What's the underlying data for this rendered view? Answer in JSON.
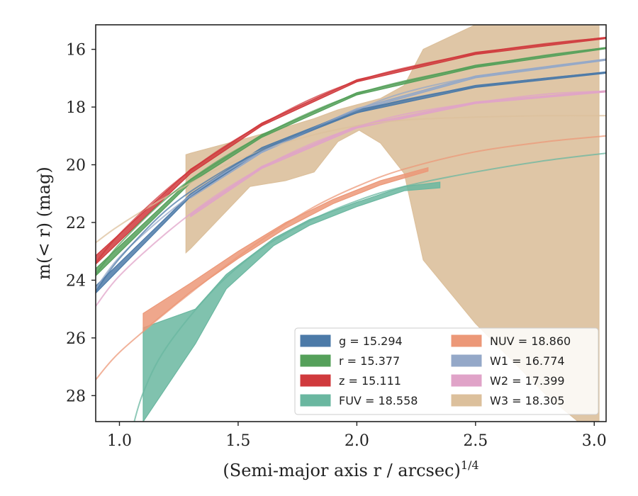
{
  "chart_data": {
    "type": "area",
    "xlabel": "(Semi-major axis r / arcsec)",
    "xlabel_sup": "1/4",
    "ylabel": "m(< r) (mag)",
    "xlim": [
      0.9,
      3.05
    ],
    "ylim": [
      28.9,
      15.15
    ],
    "y_inverted": true,
    "xticks": [
      1.0,
      1.5,
      2.0,
      2.5,
      3.0
    ],
    "xtick_labels": [
      "1.0",
      "1.5",
      "2.0",
      "2.5",
      "3.0"
    ],
    "yticks": [
      16,
      18,
      20,
      22,
      24,
      26,
      28
    ],
    "ytick_labels": [
      "16",
      "18",
      "20",
      "22",
      "24",
      "26",
      "28"
    ],
    "grid": false,
    "legend_position": "lower-right",
    "series": [
      {
        "key": "g",
        "label": "g = 15.294",
        "color": "#4c7aa8",
        "fit_x": [
          0.9,
          1.0,
          1.2,
          1.4,
          1.6,
          1.8,
          2.0,
          2.2,
          2.5,
          2.8,
          3.05
        ],
        "fit_y": [
          24.4,
          23.25,
          21.55,
          20.4,
          19.5,
          18.8,
          18.2,
          17.75,
          17.3,
          17.0,
          16.8
        ],
        "band_x": [
          0.9,
          1.3,
          1.6,
          2.0,
          2.5,
          3.05
        ],
        "band_lo": [
          24.2,
          21.0,
          19.4,
          18.1,
          17.25,
          16.78
        ],
        "band_hi": [
          24.45,
          21.1,
          19.5,
          18.2,
          17.32,
          16.83
        ]
      },
      {
        "key": "r",
        "label": "r = 15.377",
        "color": "#55a05a",
        "fit_x": [
          0.9,
          1.0,
          1.2,
          1.4,
          1.6,
          1.8,
          2.0,
          2.2,
          2.5,
          2.8,
          3.05
        ],
        "fit_y": [
          23.8,
          22.75,
          21.15,
          19.95,
          19.0,
          18.2,
          17.55,
          17.1,
          16.6,
          16.2,
          15.95
        ],
        "band_x": [
          0.9,
          1.3,
          1.6,
          2.0,
          2.5,
          3.05
        ],
        "band_lo": [
          23.6,
          20.5,
          18.95,
          17.5,
          16.55,
          15.93
        ],
        "band_hi": [
          23.85,
          20.62,
          19.05,
          17.58,
          16.63,
          15.98
        ]
      },
      {
        "key": "z",
        "label": "z = 15.111",
        "color": "#d03a3d",
        "fit_x": [
          0.9,
          1.0,
          1.2,
          1.4,
          1.6,
          1.8,
          2.0,
          2.2,
          2.5,
          2.8,
          3.05
        ],
        "fit_y": [
          23.4,
          22.4,
          20.85,
          19.6,
          18.6,
          17.75,
          17.1,
          16.65,
          16.15,
          15.8,
          15.6
        ],
        "band_x": [
          0.9,
          1.3,
          1.6,
          2.0,
          2.5,
          3.05
        ],
        "band_lo": [
          23.15,
          20.15,
          18.55,
          17.05,
          16.1,
          15.58
        ],
        "band_hi": [
          23.45,
          20.3,
          18.65,
          17.13,
          16.18,
          15.63
        ]
      },
      {
        "key": "FUV",
        "label": "FUV = 18.558",
        "color": "#6ab7a0",
        "fit_x": [
          1.05,
          1.1,
          1.2,
          1.4,
          1.6,
          1.8,
          2.0,
          2.2,
          2.5,
          2.8,
          3.05
        ],
        "fit_y": [
          29.3,
          27.9,
          26.3,
          24.3,
          22.9,
          21.95,
          21.25,
          20.75,
          20.25,
          19.85,
          19.6
        ],
        "band_x": [
          1.1,
          1.32,
          1.45,
          1.65,
          1.8,
          2.0,
          2.2,
          2.35
        ],
        "band_lo": [
          25.65,
          25.0,
          23.8,
          22.55,
          21.9,
          21.3,
          20.75,
          20.6
        ],
        "band_hi": [
          28.9,
          26.2,
          24.3,
          22.8,
          22.1,
          21.45,
          20.9,
          20.8
        ]
      },
      {
        "key": "NUV",
        "label": "NUV = 18.860",
        "color": "#ec9878",
        "fit_x": [
          0.9,
          1.0,
          1.2,
          1.4,
          1.6,
          1.8,
          2.0,
          2.2,
          2.5,
          2.8,
          3.05
        ],
        "fit_y": [
          27.45,
          26.5,
          25.1,
          23.8,
          22.6,
          21.55,
          20.75,
          20.15,
          19.55,
          19.2,
          19.0
        ],
        "band_x": [
          1.1,
          1.3,
          1.5,
          1.7,
          1.9,
          2.1,
          2.3
        ],
        "band_lo": [
          25.15,
          24.1,
          23.0,
          22.0,
          21.2,
          20.55,
          20.1
        ],
        "band_hi": [
          25.75,
          24.4,
          23.25,
          22.2,
          21.35,
          20.7,
          20.22
        ]
      },
      {
        "key": "W1",
        "label": "W1 = 16.774",
        "color": "#94a8c8",
        "fit_x": [
          0.9,
          1.0,
          1.2,
          1.4,
          1.6,
          1.8,
          2.0,
          2.2,
          2.5,
          2.8,
          3.05
        ],
        "fit_y": [
          24.3,
          23.2,
          21.7,
          20.5,
          19.55,
          18.8,
          18.1,
          17.5,
          16.95,
          16.6,
          16.35
        ],
        "band_x": [
          1.3,
          1.6,
          2.0,
          2.5,
          3.05
        ],
        "band_lo": [
          21.05,
          19.5,
          18.05,
          16.92,
          16.33
        ],
        "band_hi": [
          21.15,
          19.58,
          18.13,
          16.99,
          16.38
        ]
      },
      {
        "key": "W2",
        "label": "W2 = 17.399",
        "color": "#e0a3c8",
        "fit_x": [
          0.9,
          1.0,
          1.2,
          1.4,
          1.6,
          1.8,
          2.0,
          2.2,
          2.5,
          2.8,
          3.05
        ],
        "fit_y": [
          24.9,
          23.85,
          22.35,
          21.1,
          20.1,
          19.3,
          18.7,
          18.25,
          17.85,
          17.55,
          17.45
        ],
        "band_x": [
          1.3,
          1.6,
          2.0,
          2.5,
          3.05
        ],
        "band_lo": [
          21.7,
          20.05,
          18.65,
          17.82,
          17.43
        ],
        "band_hi": [
          21.8,
          20.13,
          18.73,
          17.88,
          17.48
        ]
      },
      {
        "key": "W3",
        "label": "W3 = 18.305",
        "color": "#dcc09c",
        "fit_x": [
          0.9,
          1.0,
          1.2,
          1.4,
          1.6,
          1.8,
          2.0,
          2.2,
          2.5,
          2.8,
          3.05
        ],
        "fit_y": [
          22.7,
          22.1,
          21.1,
          20.2,
          19.5,
          19.0,
          18.65,
          18.45,
          18.35,
          18.3,
          18.3
        ],
        "band_x": [
          1.28,
          1.3,
          1.55,
          1.7,
          1.82,
          1.92,
          2.01,
          2.1,
          2.2,
          2.28,
          2.5,
          2.8,
          3.02
        ],
        "band_lo": [
          23.05,
          22.9,
          20.75,
          20.55,
          20.25,
          19.2,
          18.8,
          19.25,
          20.3,
          23.3,
          25.5,
          28.0,
          29.5
        ],
        "band_hi": [
          19.65,
          19.6,
          19.05,
          18.7,
          18.4,
          18.1,
          17.9,
          17.7,
          17.25,
          16.0,
          15.15,
          15.15,
          15.15
        ]
      }
    ],
    "legend": [
      {
        "key": "g",
        "label": "g = 15.294",
        "color": "#4c7aa8"
      },
      {
        "key": "r",
        "label": "r = 15.377",
        "color": "#55a05a"
      },
      {
        "key": "z",
        "label": "z = 15.111",
        "color": "#d03a3d"
      },
      {
        "key": "FUV",
        "label": "FUV = 18.558",
        "color": "#6ab7a0"
      },
      {
        "key": "NUV",
        "label": "NUV = 18.860",
        "color": "#ec9878"
      },
      {
        "key": "W1",
        "label": "W1 = 16.774",
        "color": "#94a8c8"
      },
      {
        "key": "W2",
        "label": "W2 = 17.399",
        "color": "#e0a3c8"
      },
      {
        "key": "W3",
        "label": "W3 = 18.305",
        "color": "#dcc09c"
      }
    ]
  }
}
